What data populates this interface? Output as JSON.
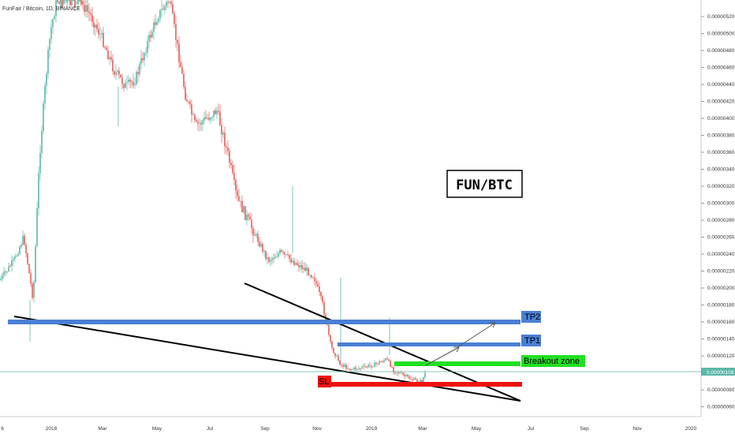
{
  "header": {
    "symbol_title": "FunFair / Bitcoin, 1D, BINANCE"
  },
  "chart_data": {
    "type": "candlestick",
    "title": "FunFair / Bitcoin, 1D, BINANCE",
    "pair_label": "FUN/BTC",
    "ylim": [
      5.5e-07,
      5.3e-07
    ],
    "y_ticks": [
      "0.00000520",
      "0.00000500",
      "0.00000480",
      "0.00000460",
      "0.00000440",
      "0.00000420",
      "0.00000400",
      "0.00000380",
      "0.00000360",
      "0.00000340",
      "0.00000320",
      "0.00000300",
      "0.00000280",
      "0.00000260",
      "0.00000240",
      "0.00000220",
      "0.00000200",
      "0.00000180",
      "0.00000160",
      "0.00000140",
      "0.00000120",
      "0.00000100",
      "0.00000080",
      "0.00000060"
    ],
    "x_ticks": [
      "6",
      "2018",
      "Mar",
      "May",
      "Jul",
      "Sep",
      "Nov",
      "2019",
      "Mar",
      "May",
      "Jul",
      "Sep",
      "Nov",
      "2020"
    ],
    "current_price": "0.00000109",
    "levels": [
      {
        "name": "TP2",
        "price": 1.7e-06,
        "color": "#4a7fd4",
        "label": "TP2"
      },
      {
        "name": "TP1",
        "price": 1.42e-06,
        "color": "#4a7fd4",
        "label": "TP1"
      },
      {
        "name": "Breakout zone",
        "price": 1.18e-06,
        "color": "#22e022",
        "label": "Breakout zone"
      },
      {
        "name": "SL",
        "price": 9.3e-07,
        "color": "#ee1111",
        "label": "SL"
      }
    ],
    "colors": {
      "up": "#5bb8a8",
      "down": "#e0605a",
      "axis_text": "#333333",
      "current_line": "#5bb8a8"
    }
  }
}
